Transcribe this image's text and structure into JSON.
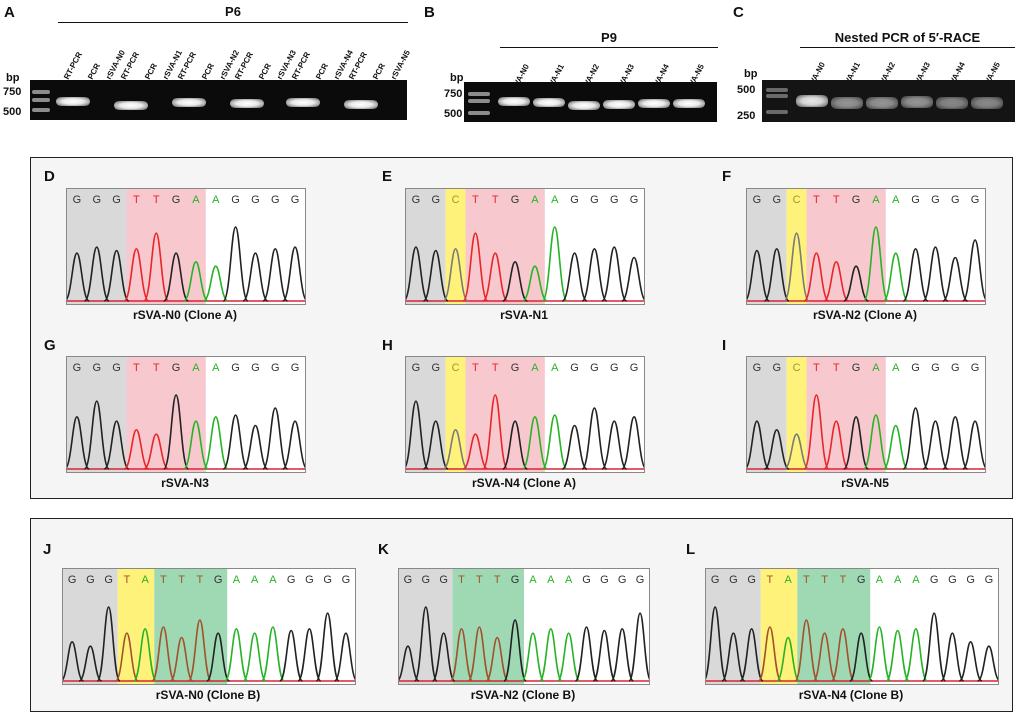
{
  "gels": {
    "A": {
      "letter": "A",
      "title": "P6",
      "bp_label": "bp",
      "markers": [
        "750",
        "500"
      ],
      "lanes": [
        "RT-PCR",
        "PCR",
        "RT-PCR",
        "PCR",
        "RT-PCR",
        "PCR",
        "RT-PCR",
        "PCR",
        "RT-PCR",
        "PCR",
        "RT-PCR",
        "PCR"
      ],
      "samples": [
        "rSVA-N0",
        "rSVA-N1",
        "rSVA-N2",
        "rSVA-N3",
        "rSVA-N4",
        "rSVA-N5"
      ]
    },
    "B": {
      "letter": "B",
      "title": "P9",
      "bp_label": "bp",
      "markers": [
        "750",
        "500"
      ],
      "lanes": [
        "rSVA-N0",
        "rSVA-N1",
        "rSVA-N2",
        "rSVA-N3",
        "rSVA-N4",
        "rSVA-N5"
      ]
    },
    "C": {
      "letter": "C",
      "title": "Nested PCR of 5′-RACE",
      "bp_label": "bp",
      "markers": [
        "500",
        "250"
      ],
      "lanes": [
        "rSVA-N0",
        "rSVA-N1",
        "rSVA-N2",
        "rSVA-N3",
        "rSVA-N4",
        "rSVA-N5"
      ]
    }
  },
  "colors": {
    "G": "#222222",
    "T": "#e8262a",
    "A": "#27b326",
    "C": "#7a7a7a",
    "T_brown": "#a0522d",
    "shade_gray": "#d9d9d9",
    "shade_pink": "#f7c9cf",
    "shade_yellow": "#fff27a",
    "shade_green": "#9fd9b4"
  },
  "chromatograms": [
    {
      "letter": "D",
      "caption": "rSVA-N0 (Clone A)",
      "bases": [
        "G",
        "G",
        "G",
        "T",
        "T",
        "G",
        "A",
        "A",
        "G",
        "G",
        "G",
        "G"
      ]
    },
    {
      "letter": "E",
      "caption": "rSVA-N1",
      "bases": [
        "G",
        "G",
        "C",
        "T",
        "T",
        "G",
        "A",
        "A",
        "G",
        "G",
        "G",
        "G"
      ]
    },
    {
      "letter": "F",
      "caption": "rSVA-N2 (Clone A)",
      "bases": [
        "G",
        "G",
        "C",
        "T",
        "T",
        "G",
        "A",
        "A",
        "G",
        "G",
        "G",
        "G"
      ]
    },
    {
      "letter": "G",
      "caption": "rSVA-N3",
      "bases": [
        "G",
        "G",
        "G",
        "T",
        "T",
        "G",
        "A",
        "A",
        "G",
        "G",
        "G",
        "G"
      ]
    },
    {
      "letter": "H",
      "caption": "rSVA-N4 (Clone A)",
      "bases": [
        "G",
        "G",
        "C",
        "T",
        "T",
        "G",
        "A",
        "A",
        "G",
        "G",
        "G",
        "G"
      ]
    },
    {
      "letter": "I",
      "caption": "rSVA-N5",
      "bases": [
        "G",
        "G",
        "C",
        "T",
        "T",
        "G",
        "A",
        "A",
        "G",
        "G",
        "G",
        "G"
      ]
    },
    {
      "letter": "J",
      "caption": "rSVA-N0 (Clone B)",
      "bases": [
        "G",
        "G",
        "G",
        "T",
        "A",
        "T",
        "T",
        "T",
        "G",
        "A",
        "A",
        "A",
        "G",
        "G",
        "G",
        "G"
      ]
    },
    {
      "letter": "K",
      "caption": "rSVA-N2 (Clone B)",
      "bases": [
        "G",
        "G",
        "G",
        "T",
        "T",
        "T",
        "G",
        "A",
        "A",
        "A",
        "G",
        "G",
        "G",
        "G"
      ]
    },
    {
      "letter": "L",
      "caption": "rSVA-N4 (Clone B)",
      "bases": [
        "G",
        "G",
        "G",
        "T",
        "A",
        "T",
        "T",
        "T",
        "G",
        "A",
        "A",
        "A",
        "G",
        "G",
        "G",
        "G"
      ]
    }
  ]
}
